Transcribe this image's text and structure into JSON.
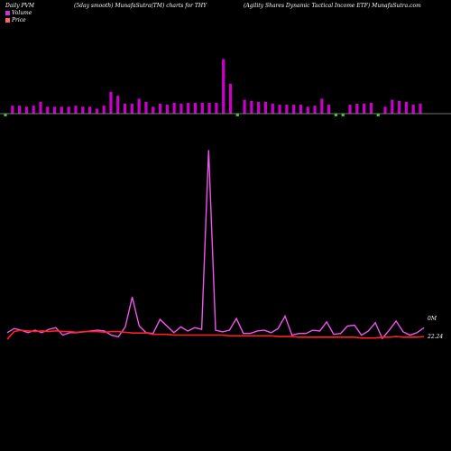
{
  "header": {
    "left": "Daily PVM",
    "mid1": "(5day smooth) MunafaSutra(TM) charts for THY",
    "mid2": "(Agility Shares Dynamic Tactical Income  ETF) MunafaSutra.com"
  },
  "legend": {
    "volume": "Volume",
    "price": "Price",
    "volume_color": "#cc33cc",
    "price_color": "#ff6666"
  },
  "colors": {
    "up_bar": "#cc00cc",
    "down_bar": "#33cc33",
    "volume_line": "#ee55ee",
    "price_line": "#ff2020",
    "axis_line": "#999999"
  },
  "chart_data": {
    "type": "bar",
    "title": "",
    "n_sessions": 60,
    "volume_bars": {
      "values": [
        8,
        8,
        8,
        7,
        8,
        12,
        7,
        7,
        7,
        7,
        8,
        7,
        7,
        5,
        8,
        22,
        18,
        10,
        10,
        15,
        12,
        7,
        10,
        9,
        11,
        10,
        11,
        11,
        11,
        11,
        11,
        55,
        30,
        18,
        14,
        13,
        12,
        12,
        10,
        9,
        9,
        9,
        9,
        7,
        8,
        15,
        9,
        8,
        9,
        9,
        10,
        10,
        11,
        8,
        7,
        14,
        13,
        12,
        9,
        10
      ],
      "direction": [
        "down",
        "up",
        "up",
        "up",
        "up",
        "up",
        "up",
        "up",
        "up",
        "up",
        "up",
        "up",
        "up",
        "up",
        "up",
        "up",
        "up",
        "up",
        "up",
        "up",
        "up",
        "up",
        "up",
        "up",
        "up",
        "up",
        "up",
        "up",
        "up",
        "up",
        "up",
        "up",
        "up",
        "down",
        "up",
        "up",
        "up",
        "up",
        "up",
        "up",
        "up",
        "up",
        "up",
        "up",
        "up",
        "up",
        "up",
        "down",
        "down",
        "up",
        "up",
        "up",
        "up",
        "down",
        "up",
        "up",
        "up",
        "up",
        "up",
        "up"
      ]
    },
    "series": [
      {
        "name": "Volume",
        "values": [
          10,
          15,
          13,
          10,
          13,
          10,
          14,
          16,
          7,
          10,
          10,
          11,
          12,
          13,
          12,
          7,
          5,
          17,
          53,
          18,
          10,
          9,
          26,
          18,
          10,
          17,
          12,
          16,
          14,
          230,
          13,
          11,
          13,
          27,
          9,
          9,
          12,
          13,
          10,
          15,
          30,
          7,
          9,
          9,
          13,
          12,
          23,
          8,
          9,
          18,
          19,
          7,
          12,
          22,
          3,
          13,
          24,
          11,
          7,
          10,
          16
        ]
      },
      {
        "name": "Price",
        "values": [
          22.05,
          22.6,
          22.7,
          22.65,
          22.6,
          22.65,
          22.6,
          22.65,
          22.6,
          22.6,
          22.55,
          22.6,
          22.6,
          22.6,
          22.55,
          22.6,
          22.6,
          22.55,
          22.5,
          22.5,
          22.5,
          22.4,
          22.4,
          22.4,
          22.35,
          22.35,
          22.35,
          22.35,
          22.35,
          22.35,
          22.35,
          22.35,
          22.3,
          22.3,
          22.3,
          22.3,
          22.3,
          22.3,
          22.3,
          22.25,
          22.25,
          22.25,
          22.2,
          22.2,
          22.2,
          22.2,
          22.2,
          22.2,
          22.2,
          22.2,
          22.2,
          22.15,
          22.15,
          22.15,
          22.2,
          22.2,
          22.25,
          22.2,
          22.2,
          22.2,
          22.24
        ]
      }
    ],
    "right_labels": {
      "volume": "0M",
      "price": "22.24"
    },
    "grid": false
  }
}
